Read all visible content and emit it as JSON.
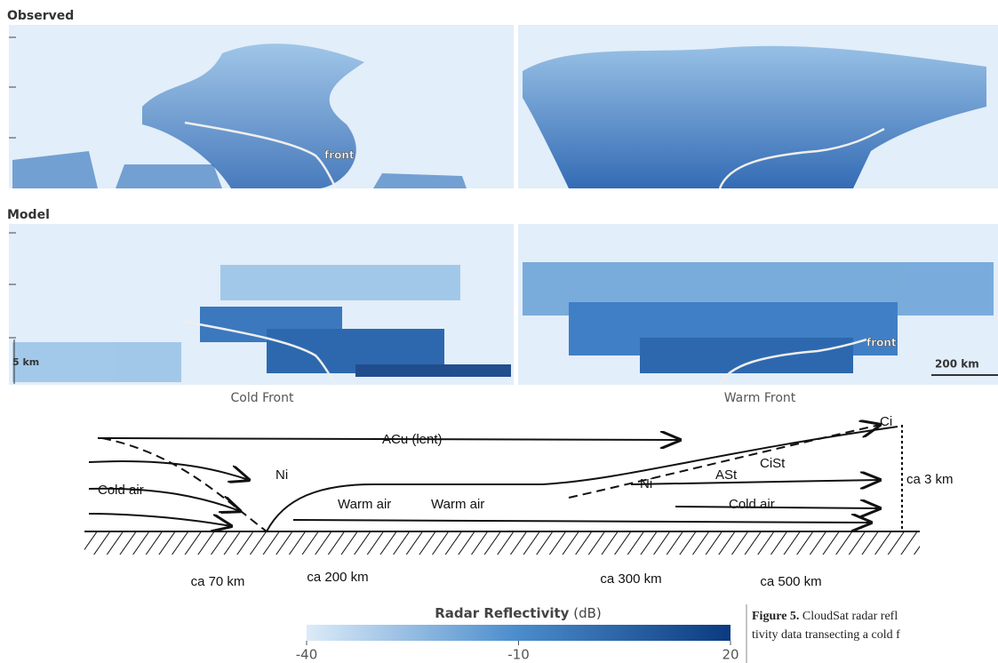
{
  "panels": {
    "observed_label": "Observed",
    "model_label": "Model",
    "observed_front": "front",
    "model_front": "front",
    "scale_height": "5 km",
    "scale_length": "200 km",
    "cold_caption": "Cold Front",
    "warm_caption": "Warm Front"
  },
  "sketch": {
    "labels": [
      "Ci",
      "ACu (lent)",
      "Ni",
      "Ni",
      "ASt",
      "CiSt",
      "Cold air",
      "Warm air",
      "Warm air",
      "Cold air"
    ],
    "height": "ca 3 km",
    "distances": [
      "ca 70 km",
      "ca 200 km",
      "ca 300 km",
      "ca 500 km"
    ]
  },
  "colorbar": {
    "title": "Radar Reflectivity",
    "unit": "(dB)",
    "lim": [
      -40,
      20
    ],
    "ticks": [
      -40,
      -10,
      20
    ]
  },
  "caption": {
    "label": "Figure 5.",
    "lines": [
      "CloudSat radar refl",
      "tivity data transecting a cold f"
    ]
  }
}
